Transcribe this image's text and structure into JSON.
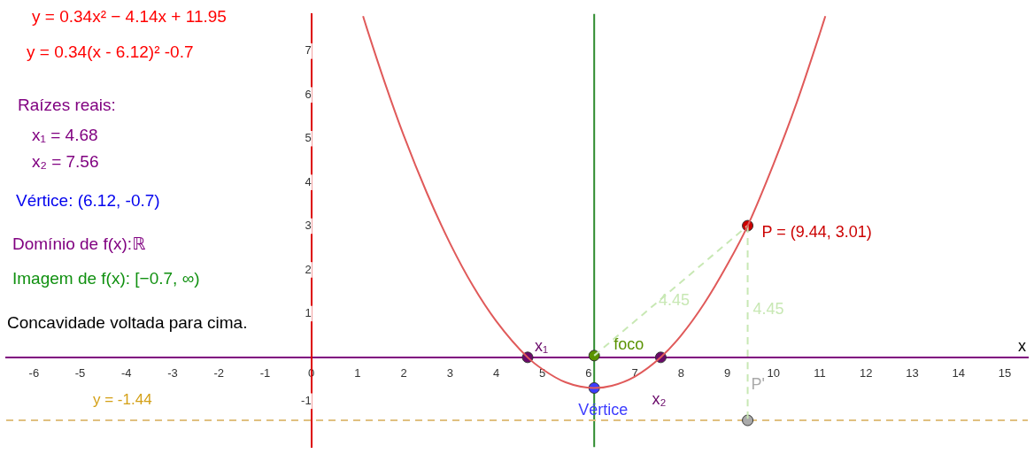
{
  "chart_data": {
    "type": "line",
    "xlabel": "x",
    "xlim": [
      -6.6,
      15.5
    ],
    "ylim": [
      -2.05,
      7.85
    ],
    "xticks": [
      -6,
      -5,
      -4,
      -3,
      -2,
      -1,
      0,
      1,
      2,
      3,
      4,
      5,
      6,
      7,
      8,
      9,
      10,
      11,
      12,
      13,
      14,
      15
    ],
    "yticks": [
      -1,
      1,
      2,
      3,
      4,
      5,
      6,
      7
    ],
    "grid": false,
    "legend": false,
    "series": [
      {
        "color": "#e05a5a",
        "x": [
          1.12,
          1.2,
          1.6,
          2,
          2.5,
          3,
          3.5,
          4,
          4.68,
          5,
          5.5,
          6.12,
          6.5,
          7,
          7.56,
          8,
          8.5,
          9,
          9.44,
          10,
          10.5,
          11,
          11.12
        ],
        "values": [
          7.8,
          7.53,
          6.25,
          5.07,
          3.76,
          2.61,
          1.63,
          0.83,
          0,
          -0.27,
          -0.57,
          -0.7,
          -0.65,
          -0.44,
          0,
          0.5,
          1.23,
          2.12,
          3.01,
          4.42,
          5.82,
          7.4,
          7.8
        ]
      },
      {
        "color": "#c8e8b4",
        "line_style": "dashed",
        "x": [
          6.12,
          9.44
        ],
        "values": [
          0.04,
          3.01
        ]
      },
      {
        "color": "#c8e8b4",
        "line_style": "dashed",
        "x": [
          9.44,
          9.44
        ],
        "values": [
          3.01,
          -1.44
        ]
      },
      {
        "type": "scatter",
        "marker": "circle",
        "color": "#cc0000",
        "x": [
          9.44
        ],
        "values": [
          3.01
        ]
      },
      {
        "type": "scatter",
        "marker": "circle",
        "color": "#3c3cff",
        "x": [
          6.12
        ],
        "values": [
          -0.7
        ]
      },
      {
        "type": "scatter",
        "marker": "circle",
        "color": "#5a9200",
        "x": [
          6.12
        ],
        "values": [
          0.04
        ]
      },
      {
        "type": "scatter",
        "marker": "circle",
        "color": "#6a0a6a",
        "x": [
          4.68,
          7.56
        ],
        "values": [
          0,
          0
        ]
      },
      {
        "type": "scatter",
        "marker": "circle",
        "color": "#aaaaaa",
        "x": [
          9.44
        ],
        "values": [
          -1.44
        ]
      }
    ],
    "ref_lines": [
      {
        "axis": "x",
        "value": 6.12,
        "color": "#2e8b2e"
      },
      {
        "axis": "y",
        "value": -1.44,
        "label": "y = -1.44",
        "color": "#e0c080",
        "line_style": "dashed"
      }
    ],
    "annotations": [
      "y = 0.34x² − 4.14x + 11.95",
      "y = 0.34(x - 6.12)² -0.7",
      "Raízes reais:",
      "x₁ = 4.68",
      "x₂ = 7.56",
      "Vértice: (6.12, -0.7)",
      "Domínio de f(x):ℝ",
      "Imagem de f(x): [−0.7, ∞)",
      "Concavidade voltada para cima.",
      {
        "text": "P = (9.44, 3.01)",
        "x": 9.44,
        "y": 3.01
      },
      {
        "text": "Vértice",
        "x": 6.12,
        "y": -0.7
      },
      {
        "text": "foco",
        "x": 6.12,
        "y": 0.04
      },
      {
        "text": "x₁",
        "x": 4.68,
        "y": 0
      },
      {
        "text": "x₂",
        "x": 7.56,
        "y": 0
      },
      {
        "text": "P'",
        "x": 9.44,
        "y": -1.44
      },
      {
        "text": "4.45",
        "x": 7.78,
        "y": 1.525
      },
      {
        "text": "4.45",
        "x": 9.44,
        "y": 0.8
      }
    ]
  }
}
